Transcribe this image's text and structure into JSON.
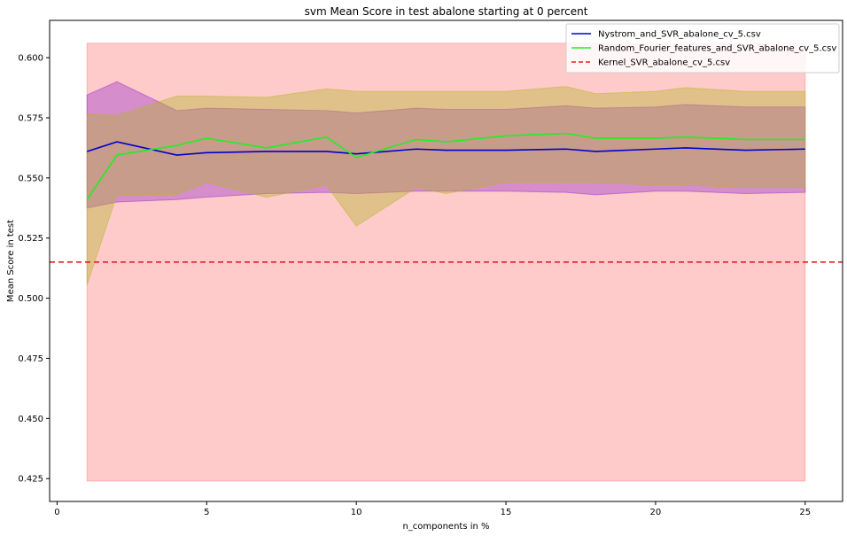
{
  "chart_data": {
    "type": "line",
    "title": "svm Mean Score in test abalone starting at 0 percent",
    "xlabel": "n_components in %",
    "ylabel": "Mean Score in test",
    "xlim": [
      -0.25,
      26.25
    ],
    "ylim": [
      0.4155,
      0.6155
    ],
    "xticks": [
      0,
      5,
      10,
      15,
      20,
      25
    ],
    "yticks": [
      0.425,
      0.45,
      0.475,
      0.5,
      0.525,
      0.55,
      0.575,
      0.6
    ],
    "legend_position": "top-right",
    "x": [
      1,
      2,
      4,
      5,
      7,
      9,
      10,
      12,
      13,
      15,
      17,
      18,
      20,
      21,
      23,
      25
    ],
    "series": [
      {
        "name": "Nystrom_and_SVR_abalone_cv_5.csv",
        "color": "#0000cc",
        "style": "solid",
        "values": [
          0.561,
          0.565,
          0.5595,
          0.5605,
          0.561,
          0.561,
          0.56,
          0.562,
          0.5615,
          0.5615,
          0.562,
          0.561,
          0.562,
          0.5625,
          0.5615,
          0.562
        ],
        "band_upper": [
          0.5845,
          0.59,
          0.578,
          0.579,
          0.5785,
          0.578,
          0.577,
          0.579,
          0.5785,
          0.5785,
          0.58,
          0.579,
          0.5795,
          0.5805,
          0.5795,
          0.5795
        ],
        "band_lower": [
          0.5375,
          0.54,
          0.541,
          0.542,
          0.5435,
          0.544,
          0.5435,
          0.5445,
          0.5445,
          0.5445,
          0.544,
          0.543,
          0.5445,
          0.5445,
          0.5435,
          0.544
        ],
        "band_color": "#9932cc"
      },
      {
        "name": "Random_Fourier_features_and_SVR_abalone_cv_5.csv",
        "color": "#22ee22",
        "style": "solid",
        "values": [
          0.541,
          0.5595,
          0.5635,
          0.5665,
          0.5625,
          0.567,
          0.5585,
          0.566,
          0.565,
          0.5675,
          0.5685,
          0.5665,
          0.5665,
          0.567,
          0.566,
          0.566
        ],
        "band_upper": [
          0.5765,
          0.576,
          0.584,
          0.584,
          0.5835,
          0.587,
          0.586,
          0.586,
          0.586,
          0.586,
          0.588,
          0.585,
          0.586,
          0.5875,
          0.586,
          0.586
        ],
        "band_lower": [
          0.5055,
          0.543,
          0.543,
          0.548,
          0.542,
          0.547,
          0.53,
          0.546,
          0.5435,
          0.548,
          0.548,
          0.548,
          0.547,
          0.547,
          0.546,
          0.546
        ],
        "band_color": "#b5b52a"
      },
      {
        "name": "Kernel_SVR_abalone_cv_5.csv",
        "color": "#dd2222",
        "style": "dashed",
        "constant": 0.515,
        "band_upper": 0.606,
        "band_lower": 0.424,
        "band_color": "#ff6666"
      }
    ]
  }
}
